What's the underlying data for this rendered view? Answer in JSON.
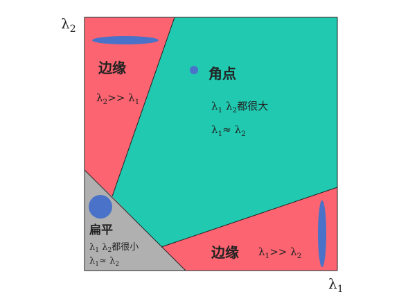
{
  "axes": {
    "x_label": "λ",
    "x_sub": "1",
    "y_label": "λ",
    "y_sub": "2"
  },
  "regions": {
    "edge_top": {
      "title": "边缘",
      "formula": {
        "l1": "λ",
        "s1": "2",
        "op": ">>",
        "l2": "λ",
        "s2": "1"
      }
    },
    "corner": {
      "title": "角点",
      "line1": {
        "a": "λ",
        "as": "1",
        "b": "λ",
        "bs": "2",
        "tail": "都很大"
      },
      "line2": {
        "a": "λ",
        "as": "1",
        "op": "≈",
        "b": "λ",
        "bs": "2"
      }
    },
    "flat": {
      "title": "扁平",
      "line1": {
        "a": "λ",
        "as": "1",
        "b": "λ",
        "bs": "2",
        "tail": "都很小"
      },
      "line2": {
        "a": "λ",
        "as": "1",
        "op": "≈",
        "b": "λ",
        "bs": "2"
      }
    },
    "edge_bottom": {
      "title": "边缘",
      "formula": {
        "l1": "λ",
        "s1": "1",
        "op": ">>",
        "l2": "λ",
        "s2": "2"
      }
    }
  },
  "colors": {
    "edge": "#fb6470",
    "corner": "#20c9b0",
    "flat": "#b0b0b0",
    "ellipse": "#4a72c8",
    "border": "#222222"
  }
}
